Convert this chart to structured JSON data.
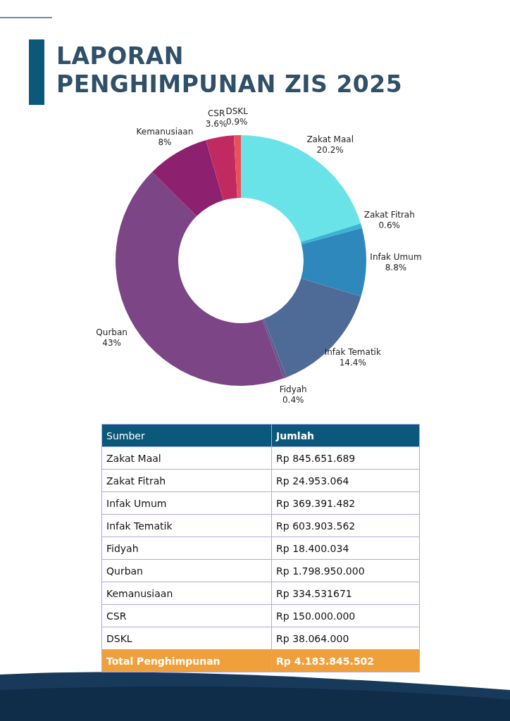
{
  "chart_data": [
    {
      "type": "donut",
      "title": "LAPORAN\nPENGHIMPUNAN ZIS 2025",
      "categories": [
        "Zakat Maal",
        "Zakat Fitrah",
        "Infak Umum",
        "Infak Tematik",
        "Fidyah",
        "Qurban",
        "Kemanusiaan",
        "CSR",
        "DSKL"
      ],
      "values": [
        20.2,
        0.6,
        8.8,
        14.4,
        0.4,
        43,
        8,
        3.6,
        0.9
      ],
      "value_labels": [
        "20.2%",
        "0.6%",
        "8.8%",
        "14.4%",
        "0.4%",
        "43%",
        "8%",
        "3.6%",
        "0.9%"
      ],
      "colors": [
        "#6ae3e8",
        "#3ab4d4",
        "#2e88bb",
        "#4e6a96",
        "#5f5a8e",
        "#7c4585",
        "#8e2070",
        "#c02a60",
        "#e8505a"
      ],
      "legend": false
    },
    {
      "type": "other",
      "categories": [
        "Zakat Maal",
        "Zakat Fitrah",
        "Infak Umum",
        "Infak Tematik",
        "Fidyah",
        "Qurban",
        "Kemanusiaan",
        "CSR",
        "DSKL"
      ],
      "value_labels": [
        "Rp 845.651.689",
        "Rp 24.953.064",
        "Rp 369.391.482",
        "Rp 603.903.562",
        "Rp 18.400.034",
        "Rp 1.798.950.000",
        "Rp 334.531671",
        "Rp 150.000.000",
        "Rp 38.064.000"
      ],
      "xlabel": "Sumber",
      "ylabel": "Jumlah",
      "annotations": [
        "Total Penghimpunan"
      ],
      "totals": [
        "Rp 4.183.845.502"
      ]
    }
  ]
}
